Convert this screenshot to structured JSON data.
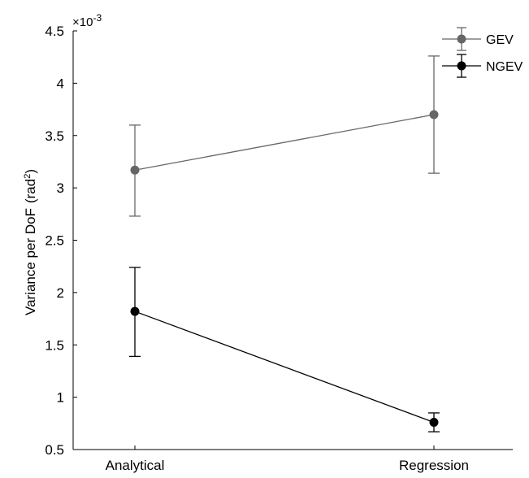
{
  "chart_data": {
    "type": "line",
    "categories": [
      "Analytical",
      "Regression"
    ],
    "ylabel_main": "Variance per DoF",
    "ylabel_unit_base": "(rad",
    "ylabel_unit_exp": "2",
    "ylabel_unit_close": ")",
    "exponent_base": "×10",
    "exponent_power": "-3",
    "ylim": [
      0.5,
      4.5
    ],
    "yticks": [
      0.5,
      1,
      1.5,
      2,
      2.5,
      3,
      3.5,
      4,
      4.5
    ],
    "ytick_labels": [
      "0.5",
      "1",
      "1.5",
      "2",
      "2.5",
      "3",
      "3.5",
      "4",
      "4.5"
    ],
    "grid": false,
    "legend_position": "top-right",
    "series": [
      {
        "name": "GEV",
        "color": "#666666",
        "values": [
          3.17,
          3.7
        ],
        "err_low": [
          2.73,
          3.14
        ],
        "err_high": [
          3.6,
          4.26
        ]
      },
      {
        "name": "NGEV",
        "color": "#000000",
        "values": [
          1.82,
          0.76
        ],
        "err_low": [
          1.39,
          0.67
        ],
        "err_high": [
          2.24,
          0.85
        ]
      }
    ]
  }
}
